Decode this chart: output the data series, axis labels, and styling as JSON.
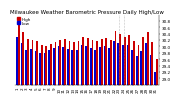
{
  "title": "Milwaukee Weather Barometric Pressure Daily High/Low",
  "ylim": [
    28.8,
    31.0
  ],
  "yticks": [
    29.0,
    29.2,
    29.4,
    29.6,
    29.8,
    30.0,
    30.2,
    30.4,
    30.6,
    30.8
  ],
  "high_color": "#cc0000",
  "low_color": "#0000cc",
  "bar_width": 0.38,
  "days": [
    1,
    2,
    3,
    4,
    5,
    6,
    7,
    8,
    9,
    10,
    11,
    12,
    13,
    14,
    15,
    16,
    17,
    18,
    19,
    20,
    21,
    22,
    23,
    24,
    25,
    26,
    27,
    28,
    29,
    30,
    31
  ],
  "highs": [
    30.72,
    30.45,
    30.22,
    30.2,
    30.18,
    30.05,
    30.0,
    30.08,
    30.15,
    30.2,
    30.22,
    30.18,
    30.15,
    30.18,
    30.3,
    30.25,
    30.2,
    30.18,
    30.22,
    30.28,
    30.2,
    30.48,
    30.4,
    30.3,
    30.35,
    30.18,
    30.05,
    30.3,
    30.45,
    30.15,
    29.6
  ],
  "lows": [
    30.3,
    30.1,
    29.9,
    29.92,
    29.85,
    29.78,
    29.8,
    29.88,
    29.95,
    30.0,
    29.98,
    29.92,
    29.88,
    29.9,
    30.05,
    30.0,
    29.95,
    29.9,
    29.98,
    30.02,
    29.95,
    30.18,
    30.12,
    30.05,
    30.05,
    29.88,
    29.7,
    29.85,
    30.1,
    29.72,
    29.2
  ],
  "missing_days": [
    23,
    24
  ],
  "background_color": "#ffffff",
  "tick_fontsize": 3.0,
  "title_fontsize": 4.0,
  "legend_fontsize": 3.0
}
